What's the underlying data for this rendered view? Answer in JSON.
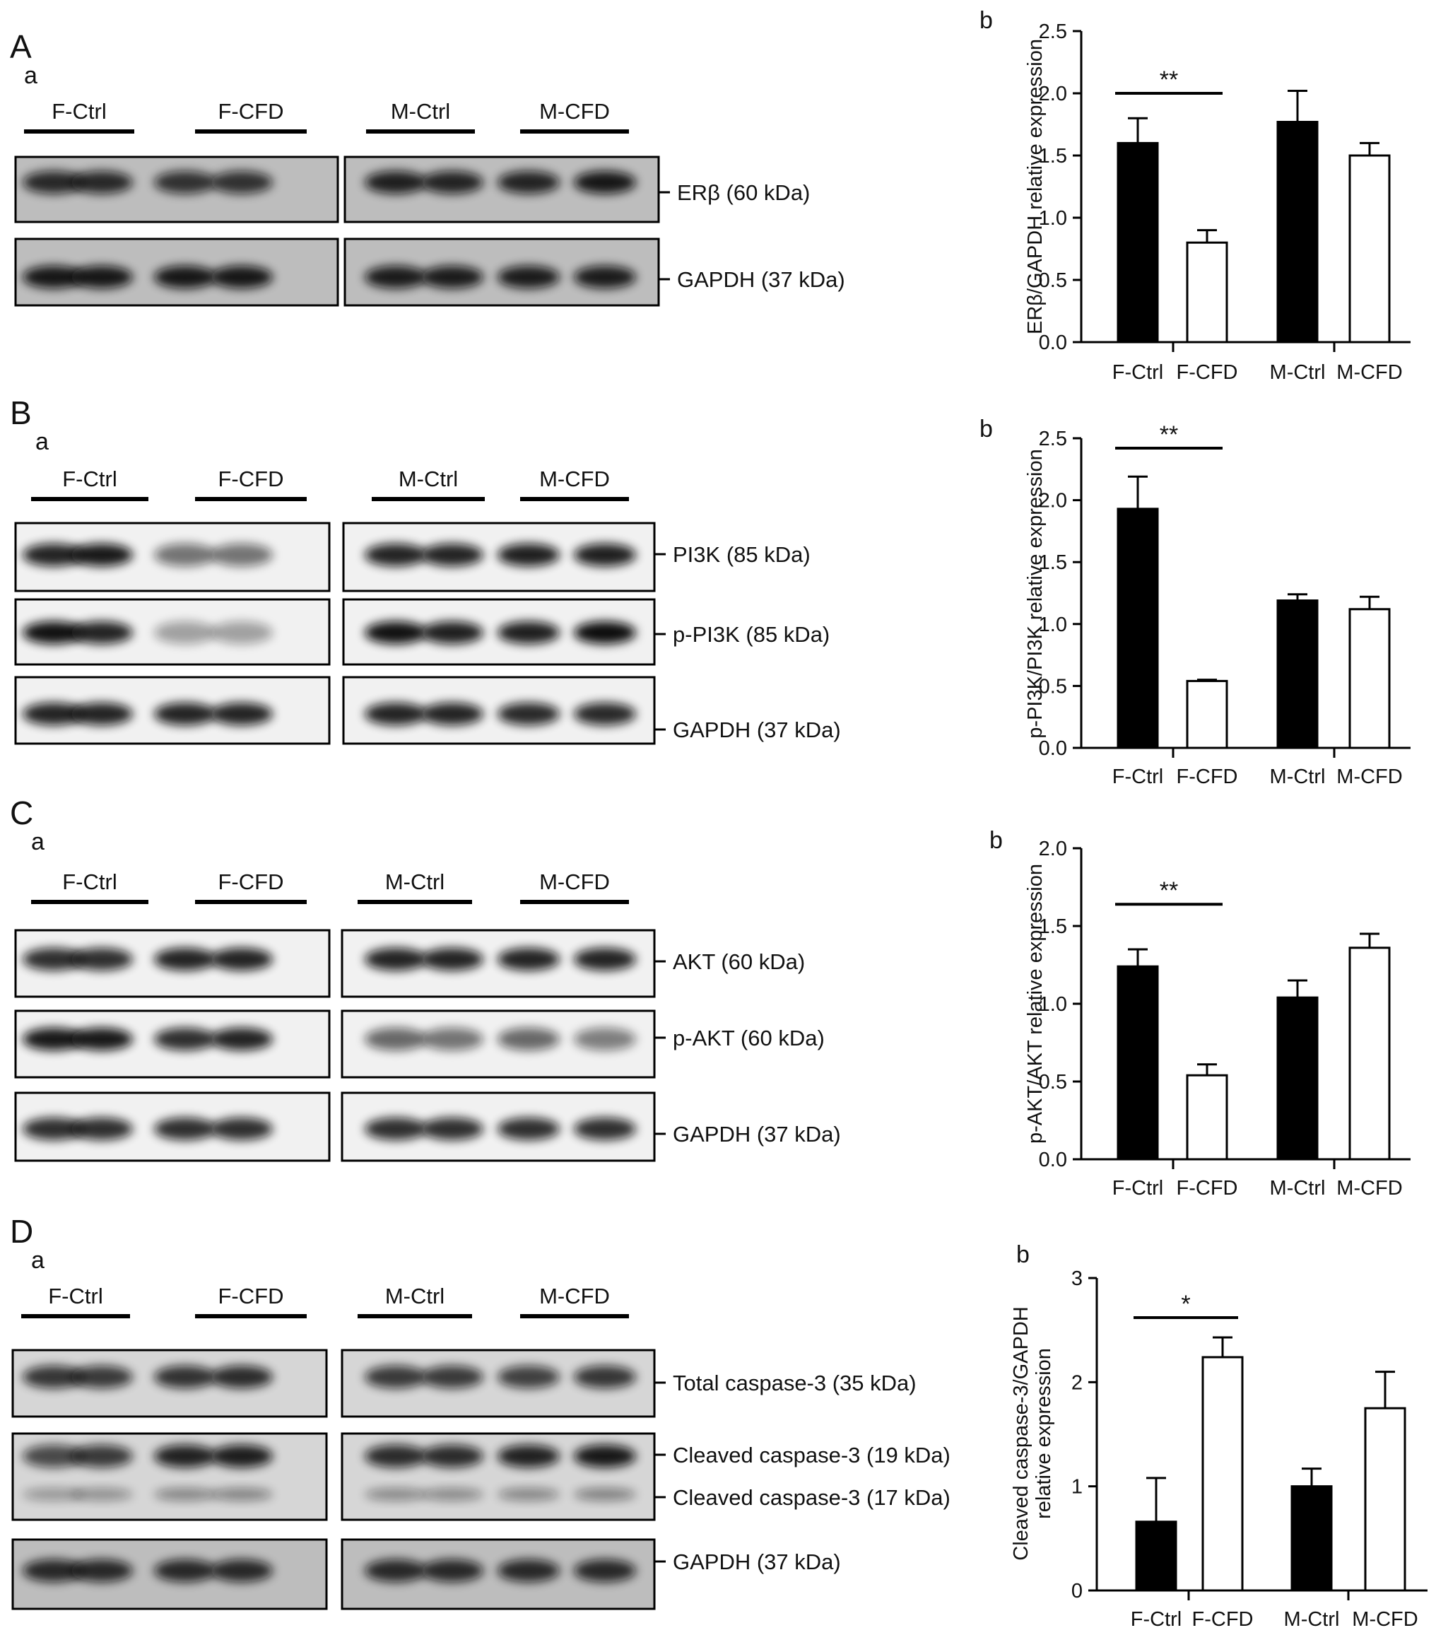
{
  "panels": [
    {
      "id": "A",
      "blot_sub": "a",
      "chart_sub": "b",
      "group_labels": [
        "F-Ctrl",
        "F-CFD",
        "M-Ctrl",
        "M-CFD"
      ],
      "blot_rows": [
        {
          "label": "ERβ (60 kDa)",
          "tone": "dark"
        },
        {
          "label": "GAPDH (37 kDa)",
          "tone": "dark"
        }
      ]
    },
    {
      "id": "B",
      "blot_sub": "a",
      "chart_sub": "b",
      "group_labels": [
        "F-Ctrl",
        "F-CFD",
        "M-Ctrl",
        "M-CFD"
      ],
      "blot_rows": [
        {
          "label": "PI3K (85 kDa)",
          "tone": "light"
        },
        {
          "label": "p-PI3K (85 kDa)",
          "tone": "light"
        },
        {
          "label": "GAPDH (37 kDa)",
          "tone": "light"
        }
      ]
    },
    {
      "id": "C",
      "blot_sub": "a",
      "chart_sub": "b",
      "group_labels": [
        "F-Ctrl",
        "F-CFD",
        "M-Ctrl",
        "M-CFD"
      ],
      "blot_rows": [
        {
          "label": "AKT (60 kDa)",
          "tone": "light"
        },
        {
          "label": "p-AKT (60 kDa)",
          "tone": "light"
        },
        {
          "label": "GAPDH (37 kDa)",
          "tone": "light"
        }
      ]
    },
    {
      "id": "D",
      "blot_sub": "a",
      "chart_sub": "b",
      "group_labels": [
        "F-Ctrl",
        "F-CFD",
        "M-Ctrl",
        "M-CFD"
      ],
      "blot_rows": [
        {
          "label": "Total caspase-3 (35 kDa)",
          "tone": "mid"
        },
        {
          "label": "Cleaved caspase-3 (19 kDa)",
          "label2": "Cleaved caspase-3 (17 kDa)",
          "tone": "mid"
        },
        {
          "label": "GAPDH (37 kDa)",
          "tone": "dark"
        }
      ]
    }
  ],
  "chart_data": [
    {
      "type": "bar",
      "panel": "A b",
      "categories": [
        "F-Ctrl",
        "F-CFD",
        "M-Ctrl",
        "M-CFD"
      ],
      "values": [
        1.6,
        0.8,
        1.77,
        1.5
      ],
      "errors": [
        0.2,
        0.1,
        0.25,
        0.1
      ],
      "fills": [
        "#000000",
        "#ffffff",
        "#000000",
        "#ffffff"
      ],
      "ylabel": "ERβ/GAPDH relative expression",
      "ylim": [
        0,
        2.5
      ],
      "yticks": [
        "0.0",
        "0.5",
        "1.0",
        "1.5",
        "2.0",
        "2.5"
      ],
      "significance": {
        "text": "**",
        "between": [
          0,
          1
        ],
        "y": 2.0
      }
    },
    {
      "type": "bar",
      "panel": "B b",
      "categories": [
        "F-Ctrl",
        "F-CFD",
        "M-Ctrl",
        "M-CFD"
      ],
      "values": [
        1.93,
        0.54,
        1.19,
        1.12
      ],
      "errors": [
        0.26,
        0.01,
        0.05,
        0.1
      ],
      "fills": [
        "#000000",
        "#ffffff",
        "#000000",
        "#ffffff"
      ],
      "ylabel": "p-PI3K/PI3K relative expression",
      "ylim": [
        0,
        2.5
      ],
      "yticks": [
        "0.0",
        "0.5",
        "1.0",
        "1.5",
        "2.0",
        "2.5"
      ],
      "significance": {
        "text": "**",
        "between": [
          0,
          1
        ],
        "y": 2.42
      }
    },
    {
      "type": "bar",
      "panel": "C b",
      "categories": [
        "F-Ctrl",
        "F-CFD",
        "M-Ctrl",
        "M-CFD"
      ],
      "values": [
        1.24,
        0.54,
        1.04,
        1.36
      ],
      "errors": [
        0.11,
        0.07,
        0.11,
        0.09
      ],
      "fills": [
        "#000000",
        "#ffffff",
        "#000000",
        "#ffffff"
      ],
      "ylabel": "p-AKT/AKT relative expression",
      "ylim": [
        0,
        2.0
      ],
      "yticks": [
        "0.0",
        "0.5",
        "1.0",
        "1.5",
        "2.0"
      ],
      "significance": {
        "text": "**",
        "between": [
          0,
          1
        ],
        "y": 1.64
      }
    },
    {
      "type": "bar",
      "panel": "D b",
      "categories": [
        "F-Ctrl",
        "F-CFD",
        "M-Ctrl",
        "M-CFD"
      ],
      "values": [
        0.66,
        2.24,
        1.0,
        1.75
      ],
      "errors": [
        0.42,
        0.19,
        0.17,
        0.35
      ],
      "fills": [
        "#000000",
        "#ffffff",
        "#000000",
        "#ffffff"
      ],
      "ylabel": "Cleaved caspase-3/GAPDH relative expression",
      "ylabel_lines": [
        "Cleaved caspase-3/GAPDH",
        "relative expression"
      ],
      "ylim": [
        0,
        3
      ],
      "yticks": [
        "0",
        "1",
        "2",
        "3"
      ],
      "significance": {
        "text": "*",
        "between": [
          0,
          1
        ],
        "y": 2.62
      }
    }
  ]
}
